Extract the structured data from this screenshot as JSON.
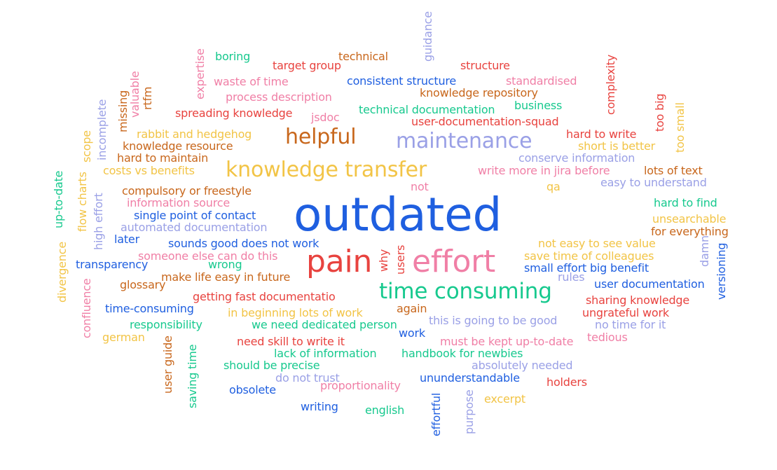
{
  "palette": {
    "blue": "#1f5fe0",
    "red": "#e8433f",
    "pink": "#f07fa6",
    "orange": "#c8671c",
    "yellow": "#f2c446",
    "green": "#17c98e",
    "lavender": "#9aa0e6"
  },
  "words": [
    "outdated",
    "pain",
    "effort",
    "time consuming",
    "knowledge transfer",
    "maintenance",
    "helpful",
    "guidance",
    "boring",
    "technical",
    "target group",
    "structure",
    "expertise",
    "valuable",
    "rtfm",
    "waste of time",
    "consistent structure",
    "standardised",
    "complexity",
    "process description",
    "knowledge repository",
    "missing",
    "incomplete",
    "spreading knowledge",
    "jsdoc",
    "technical documentation",
    "business",
    "too big",
    "user-documentation-squad",
    "too small",
    "scope",
    "rabbit and hedgehog",
    "hard to write",
    "knowledge resource",
    "short is better",
    "hard to maintain",
    "conserve information",
    "up-to-date",
    "costs vs benefits",
    "write more in jira before",
    "lots of text",
    "flow charts",
    "easy to understand",
    "not",
    "qa",
    "compulsory or freestyle",
    "high effort",
    "information source",
    "hard to find",
    "single point of contact",
    "unsearchable",
    "automated documentation",
    "for everything",
    "later",
    "sounds good does not work",
    "not easy to see value",
    "divergence",
    "damn",
    "someone else can do this",
    "why",
    "users",
    "save time of colleagues",
    "versioning",
    "transparency",
    "wrong",
    "small effort big benefit",
    "make life easy in future",
    "rules",
    "glossary",
    "user documentation",
    "confluence",
    "getting fast documentatio",
    "sharing knowledge",
    "time-consuming",
    "again",
    "in beginning lots of work",
    "ungrateful work",
    "this is going to be good",
    "responsibility",
    "we need dedicated person",
    "no time for it",
    "work",
    "german",
    "tedious",
    "need skill to write it",
    "must be kept up-to-date",
    "user guide",
    "lack of information",
    "handbook for newbies",
    "saving time",
    "should be precise",
    "absolutely needed",
    "do not trust",
    "ununderstandable",
    "holders",
    "proportionality",
    "obsolete",
    "excerpt",
    "purpose",
    "effortful",
    "writing",
    "english"
  ]
}
